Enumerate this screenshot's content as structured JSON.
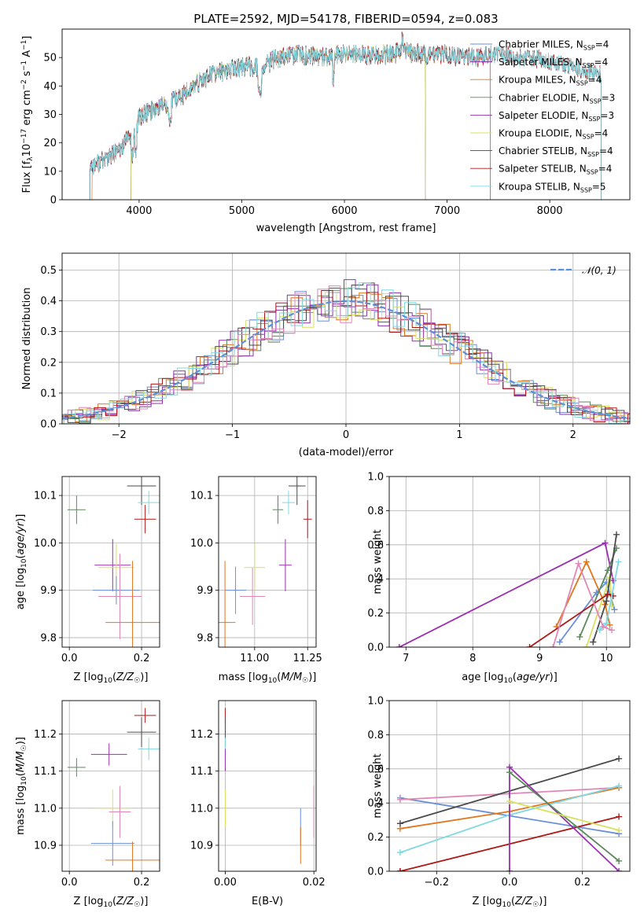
{
  "figure_title": "PLATE=2592, MJD=54178, FIBERID=0594, z=0.083",
  "colors": {
    "Chabrier MILES": "#6a8fd8",
    "Salpeter MILES": "#8e2fb0",
    "Kroupa MILES": "#e0761e",
    "Chabrier ELODIE": "#5a8a5a",
    "Salpeter ELODIE": "#9a2fb0",
    "Kroupa ELODIE": "#d8e060",
    "Chabrier STELIB": "#4a4a4a",
    "Salpeter STELIB": "#b01818",
    "Kroupa STELIB": "#80d8e0",
    "pink": "#e087b8",
    "gaussian": "#5b8fd8"
  },
  "chart_data": [
    {
      "id": "spectrum",
      "type": "line",
      "title": "",
      "xlabel": "wavelength [Angstrom, rest frame]",
      "ylabel": "Flux [f_λ10^-17 erg cm^-2 s^-1 A^-1]",
      "xlim": [
        3250,
        8780
      ],
      "ylim": [
        0,
        60
      ],
      "xticks": [
        4000,
        5000,
        6000,
        7000,
        8000
      ],
      "yticks": [
        0,
        10,
        20,
        30,
        40,
        50
      ],
      "grid": false,
      "legend_position": "top-right",
      "legend": [
        {
          "base": "Chabrier MILES, N",
          "sub": "SSP",
          "tail": "=4",
          "color_key": "Chabrier MILES"
        },
        {
          "base": "Salpeter MILES, N",
          "sub": "SSP",
          "tail": "=4",
          "color_key": "Salpeter MILES"
        },
        {
          "base": "Kroupa MILES, N",
          "sub": "SSP",
          "tail": "=4",
          "color_key": "Kroupa MILES"
        },
        {
          "base": "Chabrier ELODIE, N",
          "sub": "SSP",
          "tail": "=3",
          "color_key": "Chabrier ELODIE"
        },
        {
          "base": "Salpeter ELODIE, N",
          "sub": "SSP",
          "tail": "=3",
          "color_key": "Salpeter ELODIE"
        },
        {
          "base": "Kroupa ELODIE, N",
          "sub": "SSP",
          "tail": "=4",
          "color_key": "Kroupa ELODIE"
        },
        {
          "base": "Chabrier STELIB, N",
          "sub": "SSP",
          "tail": "=4",
          "color_key": "Chabrier STELIB"
        },
        {
          "base": "Salpeter STELIB, N",
          "sub": "SSP",
          "tail": "=4",
          "color_key": "Salpeter STELIB"
        },
        {
          "base": "Kroupa STELIB, N",
          "sub": "SSP",
          "tail": "=5",
          "color_key": "Kroupa STELIB"
        }
      ],
      "continuum": [
        [
          3520,
          12
        ],
        [
          3600,
          13
        ],
        [
          3700,
          15
        ],
        [
          3800,
          17
        ],
        [
          3900,
          22
        ],
        [
          3960,
          24
        ],
        [
          4000,
          29
        ],
        [
          4100,
          31
        ],
        [
          4200,
          33
        ],
        [
          4300,
          34
        ],
        [
          4400,
          36
        ],
        [
          4500,
          39
        ],
        [
          4700,
          44
        ],
        [
          4900,
          46
        ],
        [
          5100,
          47
        ],
        [
          5200,
          46
        ],
        [
          5300,
          49
        ],
        [
          5500,
          51
        ],
        [
          5800,
          50
        ],
        [
          6000,
          51
        ],
        [
          6200,
          51
        ],
        [
          6400,
          51
        ],
        [
          6600,
          52
        ],
        [
          6800,
          51
        ],
        [
          7000,
          51
        ],
        [
          7200,
          50
        ],
        [
          7500,
          51
        ],
        [
          7800,
          50
        ],
        [
          8000,
          49
        ],
        [
          8200,
          47
        ],
        [
          8400,
          45
        ],
        [
          8500,
          44
        ]
      ],
      "series_ranges": [
        {
          "name": "Chabrier MILES",
          "x": [
            3520,
            7420
          ]
        },
        {
          "name": "Salpeter MILES",
          "x": [
            3520,
            7420
          ]
        },
        {
          "name": "Kroupa MILES",
          "x": [
            3540,
            7420
          ]
        },
        {
          "name": "Chabrier ELODIE",
          "x": [
            3920,
            6790
          ]
        },
        {
          "name": "Salpeter ELODIE",
          "x": [
            3920,
            6790
          ]
        },
        {
          "name": "Kroupa ELODIE",
          "x": [
            3920,
            6790
          ]
        },
        {
          "name": "Chabrier STELIB",
          "x": [
            3520,
            8500
          ]
        },
        {
          "name": "Salpeter STELIB",
          "x": [
            3520,
            8500
          ]
        },
        {
          "name": "Kroupa STELIB",
          "x": [
            3520,
            8500
          ]
        }
      ]
    },
    {
      "id": "residuals",
      "type": "line",
      "xlabel": "(data-model)/error",
      "ylabel": "Normed distribution",
      "xlim": [
        -2.5,
        2.5
      ],
      "ylim": [
        0,
        0.555
      ],
      "xticks": [
        -2,
        -1,
        0,
        1,
        2
      ],
      "yticks": [
        0.0,
        0.1,
        0.2,
        0.3,
        0.4,
        0.5
      ],
      "grid": true,
      "legend_position": "top-right",
      "legend": [
        {
          "label": "𝒩(0, 1)",
          "color_key": "gaussian"
        }
      ],
      "bin_width": 0.1
    },
    {
      "id": "age_vs_Z",
      "type": "scatter",
      "xlabel": "Z [log₁₀(Z/Z☉)]",
      "ylabel": "age  [log₁₀(age/yr)]",
      "xlim": [
        -0.02,
        0.25
      ],
      "ylim": [
        9.78,
        10.14
      ],
      "xticks": [
        0.0,
        0.2
      ],
      "yticks": [
        9.8,
        9.9,
        10.0,
        10.1
      ],
      "grid": true,
      "points": [
        {
          "color_key": "Chabrier ELODIE",
          "x": 0.02,
          "xerr": 0.025,
          "y": 10.07,
          "yerr": 0.03
        },
        {
          "color_key": "Chabrier STELIB",
          "x": 0.2,
          "xerr": 0.04,
          "y": 10.12,
          "yerr": 0.04
        },
        {
          "color_key": "Kroupa STELIB",
          "x": 0.22,
          "xerr": 0.03,
          "y": 10.085,
          "yerr": 0.025
        },
        {
          "color_key": "Salpeter STELIB",
          "x": 0.21,
          "xerr": 0.03,
          "y": 10.05,
          "yerr": 0.03
        },
        {
          "color_key": "Salpeter ELODIE",
          "x": 0.12,
          "xerr": 0.05,
          "y": 9.953,
          "yerr": 0.055
        },
        {
          "color_key": "Kroupa ELODIE",
          "x": 0.13,
          "xerr": 0.05,
          "y": 9.948,
          "yerr": 0.05
        },
        {
          "color_key": "Chabrier MILES",
          "x": 0.13,
          "xerr": 0.065,
          "y": 9.9,
          "yerr": 0.03
        },
        {
          "color_key": "pink",
          "x": 0.14,
          "xerr": 0.06,
          "y": 9.887,
          "yerr": 0.09
        },
        {
          "color_key": "Kroupa MILES",
          "x": 0.175,
          "xerr": 0.075,
          "y": 9.832,
          "yerr": 0.13
        }
      ]
    },
    {
      "id": "age_vs_mass",
      "type": "scatter",
      "xlabel": "mass [log₁₀(M/M☉)]",
      "ylabel": "",
      "xlim": [
        10.83,
        11.29
      ],
      "ylim": [
        9.78,
        10.14
      ],
      "xticks": [
        11.0,
        11.25
      ],
      "yticks": [
        9.8,
        9.9,
        10.0,
        10.1
      ],
      "grid": true,
      "points": [
        {
          "color_key": "Chabrier ELODIE",
          "x": 11.11,
          "xerr": 0.025,
          "y": 10.07,
          "yerr": 0.03
        },
        {
          "color_key": "Chabrier STELIB",
          "x": 11.2,
          "xerr": 0.04,
          "y": 10.12,
          "yerr": 0.04
        },
        {
          "color_key": "Kroupa STELIB",
          "x": 11.16,
          "xerr": 0.03,
          "y": 10.085,
          "yerr": 0.025
        },
        {
          "color_key": "Salpeter STELIB",
          "x": 11.25,
          "xerr": 0.02,
          "y": 10.05,
          "yerr": 0.04
        },
        {
          "color_key": "Salpeter ELODIE",
          "x": 11.145,
          "xerr": 0.03,
          "y": 9.953,
          "yerr": 0.055
        },
        {
          "color_key": "Kroupa ELODIE",
          "x": 11.0,
          "xerr": 0.05,
          "y": 9.948,
          "yerr": 0.05
        },
        {
          "color_key": "Chabrier MILES",
          "x": 10.91,
          "xerr": 0.05,
          "y": 9.9,
          "yerr": 0.05
        },
        {
          "color_key": "pink",
          "x": 10.99,
          "xerr": 0.06,
          "y": 9.887,
          "yerr": 0.06
        },
        {
          "color_key": "Kroupa MILES",
          "x": 10.86,
          "xerr": 0.05,
          "y": 9.832,
          "yerr": 0.13
        }
      ]
    },
    {
      "id": "weight_vs_age",
      "type": "line",
      "xlabel": "age  [log₁₀(age/yr)]",
      "ylabel": "mass weight",
      "xlim": [
        6.75,
        10.35
      ],
      "ylim": [
        0,
        1
      ],
      "xticks": [
        7,
        8,
        9,
        10
      ],
      "yticks": [
        0.0,
        0.2,
        0.4,
        0.6,
        0.8,
        1.0
      ],
      "grid": true,
      "series": [
        {
          "color_key": "Chabrier MILES",
          "x": [
            9.3,
            9.85,
            10.0,
            10.12
          ],
          "y": [
            0.03,
            0.32,
            0.38,
            0.22
          ]
        },
        {
          "color_key": "Salpeter ELODIE",
          "x": [
            6.9,
            9.98,
            10.1
          ],
          "y": [
            0.0,
            0.61,
            0.39
          ]
        },
        {
          "color_key": "Kroupa MILES",
          "x": [
            9.25,
            9.7,
            9.98,
            10.05
          ],
          "y": [
            0.12,
            0.5,
            0.25,
            0.13
          ]
        },
        {
          "color_key": "Chabrier ELODIE",
          "x": [
            9.6,
            10.02,
            10.15
          ],
          "y": [
            0.06,
            0.45,
            0.58
          ]
        },
        {
          "color_key": "Kroupa ELODIE",
          "x": [
            9.7,
            10.05,
            10.08
          ],
          "y": [
            0.0,
            0.41,
            0.24
          ]
        },
        {
          "color_key": "Chabrier STELIB",
          "x": [
            9.8,
            10.0,
            10.15
          ],
          "y": [
            0.03,
            0.27,
            0.66
          ]
        },
        {
          "color_key": "Salpeter STELIB",
          "x": [
            8.85,
            10.02,
            10.1
          ],
          "y": [
            0.0,
            0.31,
            0.3
          ]
        },
        {
          "color_key": "Kroupa STELIB",
          "x": [
            9.9,
            10.0,
            10.18
          ],
          "y": [
            0.1,
            0.14,
            0.5
          ]
        },
        {
          "color_key": "pink",
          "x": [
            9.2,
            9.58,
            9.95,
            10.08
          ],
          "y": [
            0.0,
            0.49,
            0.12,
            0.1
          ]
        }
      ]
    },
    {
      "id": "mass_vs_Z",
      "type": "scatter",
      "xlabel": "Z [log₁₀(Z/Z☉)]",
      "ylabel": "mass [log₁₀(M/M☉)]",
      "xlim": [
        -0.02,
        0.25
      ],
      "ylim": [
        10.83,
        11.29
      ],
      "xticks": [
        0.0,
        0.2
      ],
      "yticks": [
        10.9,
        11.0,
        11.1,
        11.2
      ],
      "grid": true,
      "points": [
        {
          "color_key": "Chabrier ELODIE",
          "x": 0.02,
          "xerr": 0.025,
          "y": 11.11,
          "yerr": 0.025
        },
        {
          "color_key": "Chabrier STELIB",
          "x": 0.2,
          "xerr": 0.04,
          "y": 11.205,
          "yerr": 0.04
        },
        {
          "color_key": "Kroupa STELIB",
          "x": 0.22,
          "xerr": 0.03,
          "y": 11.16,
          "yerr": 0.03
        },
        {
          "color_key": "Salpeter STELIB",
          "x": 0.21,
          "xerr": 0.03,
          "y": 11.25,
          "yerr": 0.02
        },
        {
          "color_key": "Salpeter ELODIE",
          "x": 0.11,
          "xerr": 0.05,
          "y": 11.145,
          "yerr": 0.03
        },
        {
          "color_key": "Kroupa ELODIE",
          "x": 0.12,
          "xerr": 0.05,
          "y": 11.0,
          "yerr": 0.05
        },
        {
          "color_key": "pink",
          "x": 0.14,
          "xerr": 0.03,
          "y": 10.99,
          "yerr": 0.07
        },
        {
          "color_key": "Chabrier MILES",
          "x": 0.12,
          "xerr": 0.06,
          "y": 10.905,
          "yerr": 0.06
        },
        {
          "color_key": "Kroupa MILES",
          "x": 0.175,
          "xerr": 0.075,
          "y": 10.86,
          "yerr": 0.05
        }
      ]
    },
    {
      "id": "mass_vs_ebv",
      "type": "scatter",
      "xlabel": "E(B-V)",
      "ylabel": "",
      "xlim": [
        -0.0015,
        0.0205
      ],
      "ylim": [
        10.83,
        11.29
      ],
      "xticks": [
        0.0,
        0.02
      ],
      "yticks": [
        10.9,
        11.0,
        11.1,
        11.2
      ],
      "grid": true,
      "points": [
        {
          "color_key": "Salpeter STELIB",
          "x": 0.0,
          "xerr": 0.0,
          "y": 11.25,
          "yerr": 0.02
        },
        {
          "color_key": "Chabrier STELIB",
          "x": 0.0,
          "xerr": 0.0,
          "y": 11.205,
          "yerr": 0.04
        },
        {
          "color_key": "Kroupa STELIB",
          "x": 0.0,
          "xerr": 0.0,
          "y": 11.16,
          "yerr": 0.03
        },
        {
          "color_key": "Salpeter ELODIE",
          "x": 0.0,
          "xerr": 0.0,
          "y": 11.13,
          "yerr": 0.03
        },
        {
          "color_key": "Kroupa ELODIE",
          "x": 0.0,
          "xerr": 0.0,
          "y": 11.0,
          "yerr": 0.05
        },
        {
          "color_key": "Chabrier MILES",
          "x": 0.017,
          "xerr": 0.0,
          "y": 10.95,
          "yerr": 0.05
        },
        {
          "color_key": "Kroupa MILES",
          "x": 0.017,
          "xerr": 0.0,
          "y": 10.9,
          "yerr": 0.05
        },
        {
          "color_key": "pink",
          "x": 0.02,
          "xerr": 0.0,
          "y": 10.99,
          "yerr": 0.07
        }
      ]
    },
    {
      "id": "weight_vs_Z",
      "type": "line",
      "xlabel": "Z [log₁₀(Z/Z☉)]",
      "ylabel": "mass weight",
      "xlim": [
        -0.33,
        0.33
      ],
      "ylim": [
        0,
        1
      ],
      "xticks": [
        -0.2,
        0.0,
        0.2
      ],
      "yticks": [
        0.0,
        0.2,
        0.4,
        0.6,
        0.8,
        1.0
      ],
      "grid": true,
      "series": [
        {
          "color_key": "Chabrier MILES",
          "x": [
            -0.3,
            0.3
          ],
          "y": [
            0.43,
            0.22
          ]
        },
        {
          "color_key": "pink",
          "x": [
            -0.3,
            0.3
          ],
          "y": [
            0.42,
            0.49
          ]
        },
        {
          "color_key": "Kroupa MILES",
          "x": [
            -0.3,
            0.0,
            0.3
          ],
          "y": [
            0.25,
            0.35,
            0.49
          ]
        },
        {
          "color_key": "Chabrier STELIB",
          "x": [
            -0.3,
            0.3
          ],
          "y": [
            0.28,
            0.66
          ]
        },
        {
          "color_key": "Kroupa STELIB",
          "x": [
            -0.3,
            0.0,
            0.3
          ],
          "y": [
            0.11,
            0.33,
            0.5
          ]
        },
        {
          "color_key": "Salpeter STELIB",
          "x": [
            -0.3,
            -0.3,
            0.3
          ],
          "y": [
            0.0,
            0.0,
            0.32
          ]
        },
        {
          "color_key": "Salpeter ELODIE",
          "x": [
            0.0,
            0.0,
            0.3
          ],
          "y": [
            0.0,
            0.61,
            0.0
          ]
        },
        {
          "color_key": "Chabrier ELODIE",
          "x": [
            0.0,
            0.3
          ],
          "y": [
            0.58,
            0.06
          ]
        },
        {
          "color_key": "Kroupa ELODIE",
          "x": [
            0.0,
            0.3
          ],
          "y": [
            0.41,
            0.24
          ]
        }
      ]
    }
  ]
}
